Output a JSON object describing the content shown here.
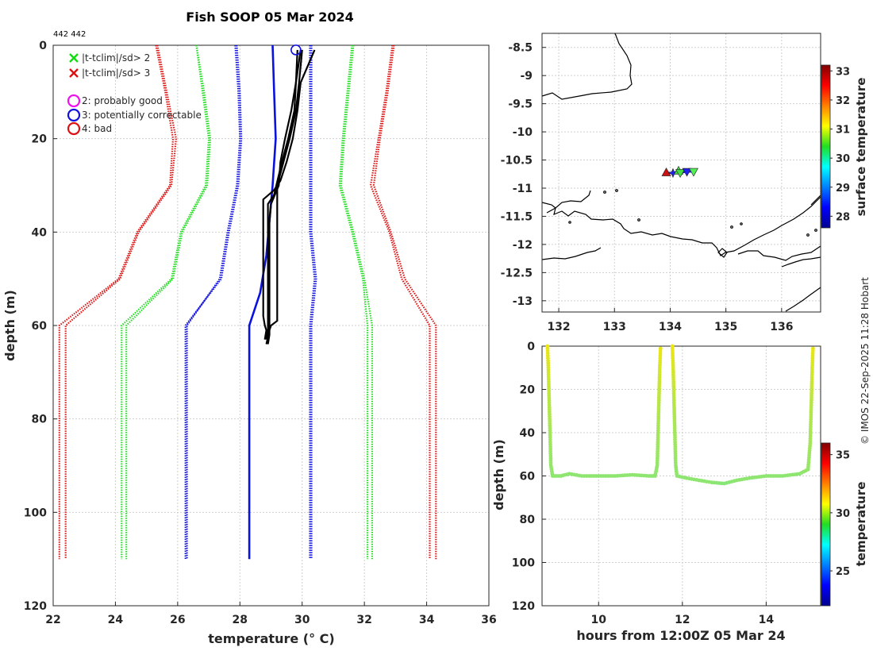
{
  "title": "Fish SOOP 05 Mar 2024",
  "id_label": "442 442",
  "credit": "© IMOS 22-Sep-2025 11:28 Hobart",
  "chart_data": [
    {
      "name": "temperature-depth profile",
      "type": "line",
      "xlabel": "temperature (° C)",
      "ylabel": "depth (m)",
      "xlim": [
        22,
        36
      ],
      "ylim": [
        0,
        120
      ],
      "y_reversed": true,
      "xticks": [
        22,
        24,
        26,
        28,
        30,
        32,
        34,
        36
      ],
      "yticks": [
        0,
        20,
        40,
        60,
        80,
        100,
        120
      ],
      "legend": {
        "position": "top-left",
        "entries": [
          {
            "marker": "x",
            "color": "#11dd11",
            "label": "|t-tclim|/sd> 2"
          },
          {
            "marker": "x",
            "color": "#dd1111",
            "label": "|t-tclim|/sd> 3"
          },
          {
            "marker": "o",
            "color": "#ee11ee",
            "label": "2: probably good"
          },
          {
            "marker": "o",
            "color": "#1111dd",
            "label": "3: potentially correctable"
          },
          {
            "marker": "o",
            "color": "#dd1111",
            "label": "4: bad"
          }
        ]
      },
      "series": [
        {
          "name": "climatology mean",
          "color": "#0a12dd",
          "style": "solid",
          "points": [
            [
              29.05,
              0
            ],
            [
              29.1,
              10
            ],
            [
              29.15,
              20
            ],
            [
              29.05,
              30
            ],
            [
              28.85,
              45
            ],
            [
              28.65,
              53
            ],
            [
              28.3,
              60
            ],
            [
              28.3,
              110
            ]
          ]
        },
        {
          "name": "mean -1sd a",
          "color": "#1515dd",
          "style": "dotted",
          "points": [
            [
              27.85,
              0
            ],
            [
              27.95,
              10
            ],
            [
              28.0,
              20
            ],
            [
              27.9,
              30
            ],
            [
              27.6,
              40
            ],
            [
              27.35,
              50
            ],
            [
              26.3,
              60
            ],
            [
              26.3,
              110
            ]
          ]
        },
        {
          "name": "mean -1sd b",
          "color": "#1515dd",
          "style": "dotted",
          "points": [
            [
              27.9,
              0
            ],
            [
              28.0,
              10
            ],
            [
              28.05,
              20
            ],
            [
              27.95,
              30
            ],
            [
              27.65,
              40
            ],
            [
              27.4,
              50
            ],
            [
              26.25,
              60
            ],
            [
              26.25,
              110
            ]
          ]
        },
        {
          "name": "mean +1sd a",
          "color": "#1515dd",
          "style": "dotted",
          "points": [
            [
              30.3,
              0
            ],
            [
              30.3,
              20
            ],
            [
              30.3,
              30
            ],
            [
              30.3,
              40
            ],
            [
              30.45,
              50
            ],
            [
              30.3,
              60
            ],
            [
              30.3,
              110
            ]
          ]
        },
        {
          "name": "mean +1sd b",
          "color": "#1515dd",
          "style": "dotted",
          "points": [
            [
              30.25,
              0
            ],
            [
              30.25,
              20
            ],
            [
              30.25,
              30
            ],
            [
              30.25,
              40
            ],
            [
              30.4,
              50
            ],
            [
              30.25,
              60
            ],
            [
              30.25,
              110
            ]
          ]
        },
        {
          "name": "mean -2sd a",
          "color": "#22dd22",
          "style": "dotted",
          "points": [
            [
              26.6,
              0
            ],
            [
              26.8,
              10
            ],
            [
              27.0,
              20
            ],
            [
              26.9,
              30
            ],
            [
              26.1,
              40
            ],
            [
              25.8,
              50
            ],
            [
              24.2,
              60
            ],
            [
              24.2,
              110
            ]
          ]
        },
        {
          "name": "mean -2sd b",
          "color": "#22dd22",
          "style": "dotted",
          "points": [
            [
              26.6,
              0
            ],
            [
              26.85,
              10
            ],
            [
              27.05,
              20
            ],
            [
              26.95,
              30
            ],
            [
              26.15,
              40
            ],
            [
              25.85,
              50
            ],
            [
              24.35,
              60
            ],
            [
              24.35,
              110
            ]
          ]
        },
        {
          "name": "mean +2sd a",
          "color": "#22dd22",
          "style": "dotted",
          "points": [
            [
              31.6,
              0
            ],
            [
              31.45,
              10
            ],
            [
              31.3,
              20
            ],
            [
              31.2,
              30
            ],
            [
              31.6,
              40
            ],
            [
              31.95,
              50
            ],
            [
              32.1,
              60
            ],
            [
              32.1,
              110
            ]
          ]
        },
        {
          "name": "mean +2sd b",
          "color": "#22dd22",
          "style": "dotted",
          "points": [
            [
              31.65,
              0
            ],
            [
              31.5,
              10
            ],
            [
              31.35,
              20
            ],
            [
              31.25,
              30
            ],
            [
              31.65,
              40
            ],
            [
              32.0,
              50
            ],
            [
              32.25,
              60
            ],
            [
              32.25,
              110
            ]
          ]
        },
        {
          "name": "mean -3sd a",
          "color": "#dd1515",
          "style": "dotted",
          "points": [
            [
              25.3,
              0
            ],
            [
              25.6,
              10
            ],
            [
              25.85,
              20
            ],
            [
              25.75,
              30
            ],
            [
              24.7,
              40
            ],
            [
              24.1,
              50
            ],
            [
              22.2,
              60
            ],
            [
              22.2,
              110
            ]
          ]
        },
        {
          "name": "mean -3sd b",
          "color": "#dd1515",
          "style": "dotted",
          "points": [
            [
              25.35,
              0
            ],
            [
              25.65,
              10
            ],
            [
              25.95,
              20
            ],
            [
              25.8,
              30
            ],
            [
              24.75,
              40
            ],
            [
              24.15,
              50
            ],
            [
              22.4,
              60
            ],
            [
              22.4,
              110
            ]
          ]
        },
        {
          "name": "mean +3sd a",
          "color": "#dd1515",
          "style": "dotted",
          "points": [
            [
              32.9,
              0
            ],
            [
              32.7,
              10
            ],
            [
              32.45,
              20
            ],
            [
              32.2,
              30
            ],
            [
              32.8,
              40
            ],
            [
              33.2,
              50
            ],
            [
              34.1,
              60
            ],
            [
              34.1,
              110
            ]
          ]
        },
        {
          "name": "mean +3sd b",
          "color": "#dd1515",
          "style": "dotted",
          "points": [
            [
              32.95,
              0
            ],
            [
              32.75,
              10
            ],
            [
              32.5,
              20
            ],
            [
              32.3,
              30
            ],
            [
              32.85,
              40
            ],
            [
              33.3,
              50
            ],
            [
              34.3,
              60
            ],
            [
              34.3,
              110
            ]
          ]
        },
        {
          "name": "profile 1",
          "color": "#000000",
          "style": "solid",
          "points": [
            [
              30.4,
              1
            ],
            [
              29.95,
              8
            ],
            [
              29.85,
              14
            ],
            [
              29.7,
              20
            ],
            [
              29.5,
              25
            ],
            [
              29.3,
              29
            ],
            [
              29.1,
              31
            ],
            [
              28.75,
              33
            ],
            [
              28.75,
              35
            ],
            [
              28.75,
              58
            ],
            [
              28.8,
              60
            ],
            [
              28.85,
              61
            ],
            [
              28.8,
              63
            ]
          ]
        },
        {
          "name": "profile 2",
          "color": "#000000",
          "style": "solid",
          "points": [
            [
              30.0,
              1
            ],
            [
              29.9,
              8
            ],
            [
              29.8,
              14
            ],
            [
              29.6,
              20
            ],
            [
              29.4,
              25
            ],
            [
              29.2,
              30
            ],
            [
              29.2,
              35
            ],
            [
              29.2,
              59
            ],
            [
              29.0,
              60
            ],
            [
              28.95,
              61
            ],
            [
              28.85,
              64
            ]
          ]
        },
        {
          "name": "profile 3",
          "color": "#000000",
          "style": "solid",
          "points": [
            [
              29.85,
              1
            ],
            [
              29.8,
              8
            ],
            [
              29.75,
              14
            ],
            [
              29.55,
              20
            ],
            [
              29.35,
              25
            ],
            [
              29.1,
              32
            ],
            [
              28.9,
              34
            ],
            [
              28.9,
              59
            ],
            [
              28.9,
              61
            ],
            [
              28.85,
              63
            ]
          ]
        },
        {
          "name": "profile 4",
          "color": "#000000",
          "style": "solid",
          "points": [
            [
              29.95,
              1
            ],
            [
              29.8,
              8
            ],
            [
              29.65,
              14
            ],
            [
              29.45,
              20
            ],
            [
              29.3,
              25
            ],
            [
              29.25,
              30
            ],
            [
              29.0,
              34
            ],
            [
              28.95,
              38
            ],
            [
              28.95,
              59
            ],
            [
              28.95,
              62
            ],
            [
              28.9,
              64
            ]
          ]
        }
      ],
      "flag_markers": [
        {
          "x": 29.8,
          "y": 1,
          "shape": "circle",
          "color": "#1111dd"
        }
      ]
    },
    {
      "name": "track map",
      "type": "scatter",
      "xlabel": "",
      "ylabel": "",
      "xlim": [
        131.7,
        136.7
      ],
      "ylim": [
        -13.2,
        -8.25
      ],
      "xticks": [
        132,
        133,
        134,
        135,
        136
      ],
      "yticks": [
        -8.5,
        -9,
        -9.5,
        -10,
        -10.5,
        -11,
        -11.5,
        -12,
        -12.5,
        -13
      ],
      "points": [
        {
          "lon": 133.93,
          "lat": -10.72,
          "marker": "triangle-up",
          "color": "#cc1111"
        },
        {
          "lon": 134.05,
          "lat": -10.73,
          "marker": "star",
          "color": "#2222ee"
        },
        {
          "lon": 134.15,
          "lat": -10.69,
          "marker": "triangle-up",
          "color": "#44dd44"
        },
        {
          "lon": 134.18,
          "lat": -10.73,
          "marker": "triangle-down",
          "color": "#44dd44"
        },
        {
          "lon": 134.3,
          "lat": -10.71,
          "marker": "triangle-down",
          "color": "#2222ee"
        },
        {
          "lon": 134.42,
          "lat": -10.71,
          "marker": "triangle-down",
          "color": "#55ee55"
        }
      ],
      "colorbar": {
        "label": "surface temperature",
        "ticks": [
          28,
          29,
          30,
          31,
          32,
          33
        ],
        "range": [
          27.6,
          33.2
        ]
      }
    },
    {
      "name": "depth-time section",
      "type": "scatter",
      "xlabel": "hours from 12:00Z 05 Mar 24",
      "ylabel": "depth (m)",
      "xlim": [
        8.65,
        15.3
      ],
      "ylim": [
        0,
        120
      ],
      "y_reversed": true,
      "xticks": [
        10,
        12,
        14
      ],
      "yticks": [
        0,
        20,
        40,
        60,
        80,
        100,
        120
      ],
      "segments": [
        {
          "points": [
            [
              8.78,
              0
            ],
            [
              8.8,
              10
            ],
            [
              8.82,
              25
            ],
            [
              8.84,
              40
            ],
            [
              8.86,
              55
            ],
            [
              8.9,
              60
            ],
            [
              9.1,
              60
            ],
            [
              9.3,
              59
            ],
            [
              9.6,
              60
            ],
            [
              10.0,
              60
            ],
            [
              10.4,
              60
            ],
            [
              10.8,
              59.5
            ],
            [
              11.2,
              60
            ],
            [
              11.35,
              60
            ],
            [
              11.4,
              55
            ],
            [
              11.42,
              40
            ],
            [
              11.44,
              25
            ],
            [
              11.46,
              10
            ],
            [
              11.48,
              0
            ]
          ],
          "temps": [
            30.5,
            30.2,
            29.8,
            29.5,
            29.3,
            29.2,
            29.2,
            29.2,
            29.2,
            29.2,
            29.2,
            29.2,
            29.2,
            29.2,
            29.3,
            29.5,
            29.8,
            30.2,
            30.5
          ]
        },
        {
          "points": [
            [
              11.76,
              0
            ],
            [
              11.78,
              10
            ],
            [
              11.8,
              25
            ],
            [
              11.82,
              40
            ],
            [
              11.84,
              55
            ],
            [
              11.87,
              60
            ],
            [
              12.1,
              61
            ],
            [
              12.4,
              62
            ],
            [
              12.7,
              63
            ],
            [
              13.0,
              63.5
            ],
            [
              13.3,
              62
            ],
            [
              13.6,
              61
            ],
            [
              14.0,
              60
            ],
            [
              14.4,
              60
            ],
            [
              14.8,
              59
            ],
            [
              15.0,
              57
            ],
            [
              15.05,
              45
            ],
            [
              15.08,
              25
            ],
            [
              15.1,
              10
            ],
            [
              15.12,
              0
            ]
          ],
          "temps": [
            30.5,
            30.2,
            29.8,
            29.5,
            29.3,
            29.2,
            29.2,
            29.2,
            29.2,
            29.1,
            29.2,
            29.2,
            29.2,
            29.2,
            29.2,
            29.3,
            29.5,
            29.8,
            30.2,
            30.5
          ]
        }
      ],
      "colorbar": {
        "label": "temperature",
        "ticks": [
          25,
          30,
          35
        ],
        "range": [
          22,
          36
        ]
      }
    }
  ]
}
